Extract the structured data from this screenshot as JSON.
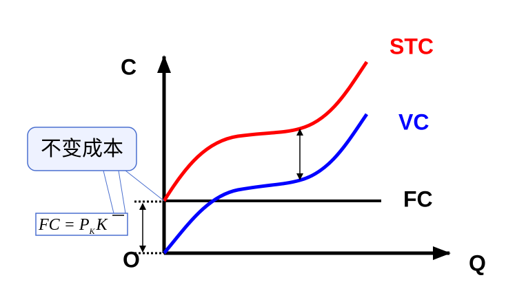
{
  "axes": {
    "y_label": "C",
    "x_label": "Q",
    "origin": "O"
  },
  "curves": {
    "stc": "STC",
    "vc": "VC",
    "fc": "FC"
  },
  "callout": "不变成本",
  "formula": {
    "main": "FC = P",
    "subscript": "K",
    "overbar_symbol": "K"
  }
}
